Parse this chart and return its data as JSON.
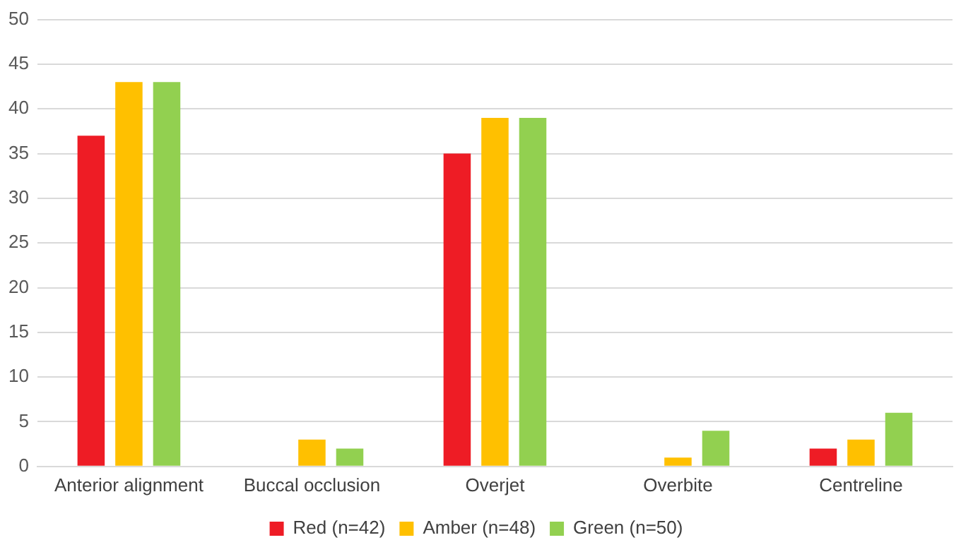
{
  "chart_data": {
    "type": "bar",
    "categories": [
      "Anterior alignment",
      "Buccal occlusion",
      "Overjet",
      "Overbite",
      "Centreline"
    ],
    "series": [
      {
        "name": "Red (n=42)",
        "color": "#ee1c25",
        "values": [
          37,
          0,
          35,
          0,
          2
        ]
      },
      {
        "name": "Amber (n=48)",
        "color": "#ffc000",
        "values": [
          43,
          3,
          39,
          1,
          3
        ]
      },
      {
        "name": "Green (n=50)",
        "color": "#92d050",
        "values": [
          43,
          2,
          39,
          4,
          6
        ]
      }
    ],
    "ylim": [
      0,
      50
    ],
    "yticks": [
      0,
      5,
      10,
      15,
      20,
      25,
      30,
      35,
      40,
      45,
      50
    ],
    "grid": "y",
    "legend": "bottom"
  }
}
